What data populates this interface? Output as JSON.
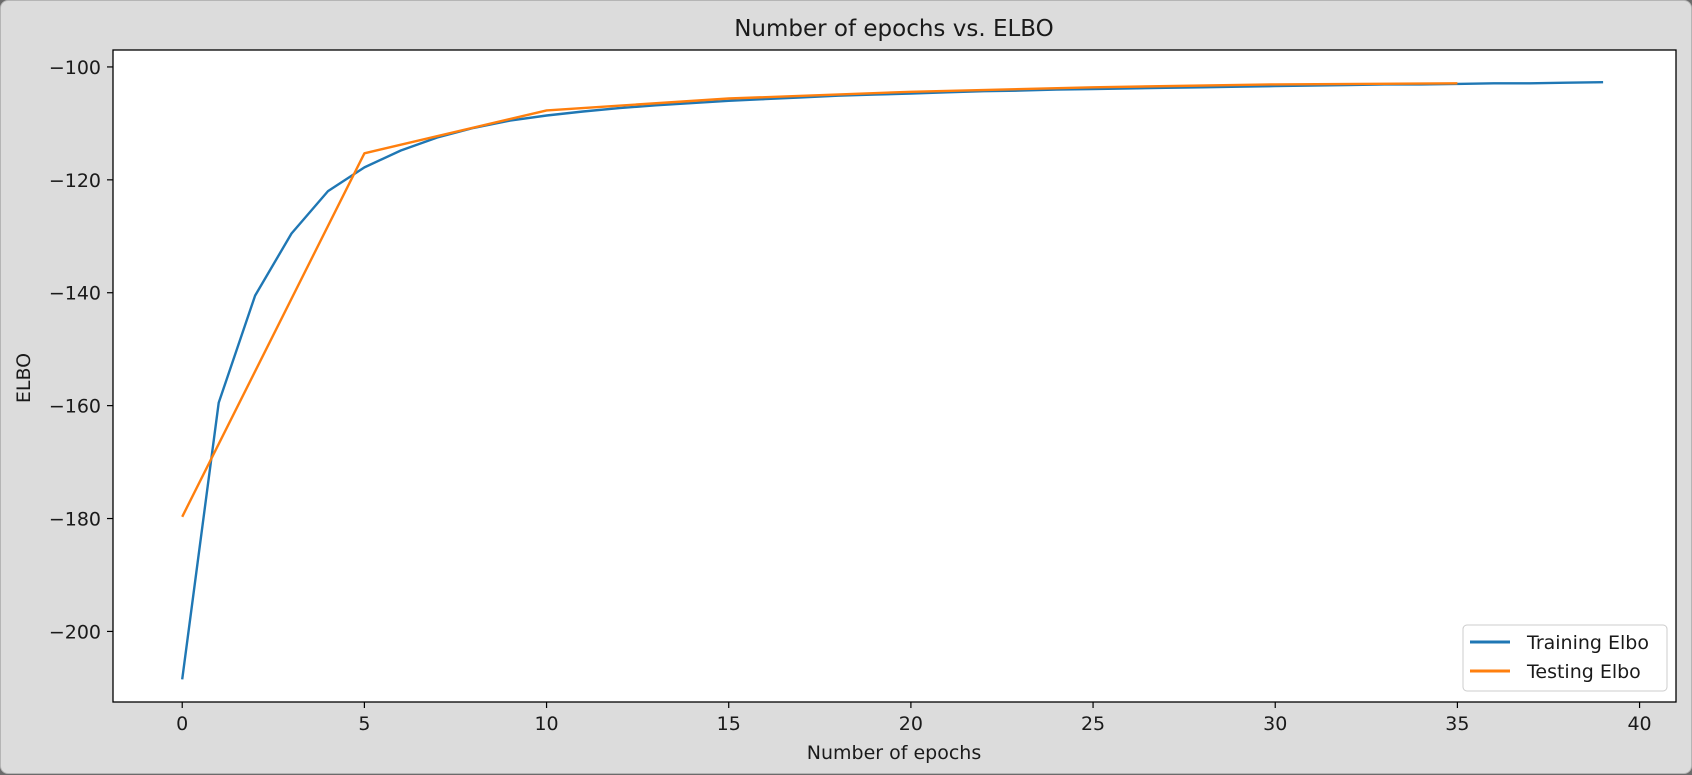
{
  "chart_data": {
    "type": "line",
    "title": "Number of epochs vs. ELBO",
    "xlabel": "Number of epochs",
    "ylabel": "ELBO",
    "xlim": [
      -1.9,
      41
    ],
    "ylim": [
      -212.5,
      -97
    ],
    "xticks": [
      0,
      5,
      10,
      15,
      20,
      25,
      30,
      35,
      40
    ],
    "yticks": [
      -100,
      -120,
      -140,
      -160,
      -180,
      -200
    ],
    "ytick_labels": [
      "−100",
      "−120",
      "−140",
      "−160",
      "−180",
      "−200"
    ],
    "grid": false,
    "legend_position": "lower-right",
    "series": [
      {
        "name": "Training Elbo",
        "color": "#1f77b4",
        "x": [
          0,
          1,
          2,
          3,
          4,
          5,
          6,
          7,
          8,
          9,
          10,
          11,
          12,
          13,
          14,
          15,
          16,
          17,
          18,
          19,
          20,
          21,
          22,
          23,
          24,
          25,
          26,
          27,
          28,
          29,
          30,
          31,
          32,
          33,
          34,
          35,
          36,
          37,
          38,
          39
        ],
        "y": [
          -208.5,
          -159.5,
          -140.5,
          -129.5,
          -122.0,
          -117.8,
          -114.8,
          -112.5,
          -110.8,
          -109.5,
          -108.6,
          -107.9,
          -107.3,
          -106.8,
          -106.4,
          -106.0,
          -105.7,
          -105.4,
          -105.1,
          -104.9,
          -104.7,
          -104.5,
          -104.3,
          -104.2,
          -104.0,
          -103.9,
          -103.8,
          -103.7,
          -103.6,
          -103.5,
          -103.4,
          -103.3,
          -103.2,
          -103.1,
          -103.1,
          -103.0,
          -102.9,
          -102.9,
          -102.8,
          -102.7
        ]
      },
      {
        "name": "Testing Elbo",
        "color": "#ff7f0e",
        "x": [
          0,
          5,
          10,
          15,
          20,
          25,
          30,
          35
        ],
        "y": [
          -179.7,
          -115.3,
          -107.7,
          -105.6,
          -104.4,
          -103.6,
          -103.1,
          -102.9
        ]
      }
    ]
  }
}
